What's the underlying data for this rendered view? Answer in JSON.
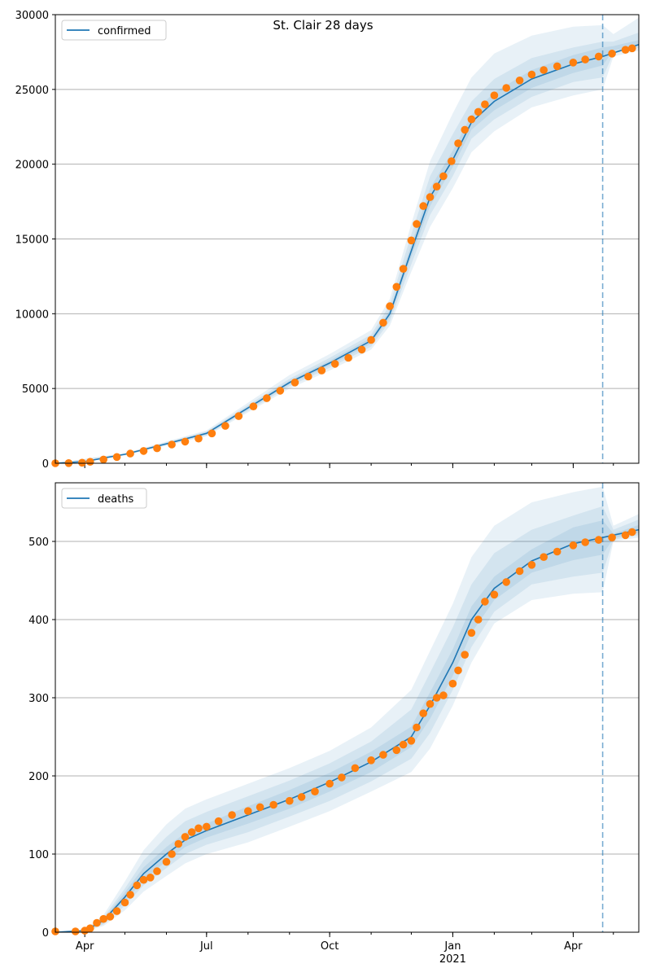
{
  "title": "St. Clair 28 days",
  "colors": {
    "fit_line": "#1f77b4",
    "observed": "#ff7f0e",
    "band": "#1f77b4",
    "grid": "#b0b0b0",
    "forecast_line": "#1f77b4"
  },
  "x_axis": {
    "start": "2020-03-10",
    "end": "2021-05-20",
    "ticks": [
      {
        "date": "2020-04-01",
        "label": "Apr",
        "sublabel": ""
      },
      {
        "date": "2020-07-01",
        "label": "Jul",
        "sublabel": ""
      },
      {
        "date": "2020-10-01",
        "label": "Oct",
        "sublabel": ""
      },
      {
        "date": "2021-01-01",
        "label": "Jan",
        "sublabel": "2021"
      },
      {
        "date": "2021-04-01",
        "label": "Apr",
        "sublabel": ""
      }
    ],
    "forecast_start": "2021-04-23"
  },
  "chart_data": [
    {
      "type": "line",
      "name": "confirmed",
      "legend": "confirmed",
      "legend_position": "upper left",
      "grid": true,
      "ylim": [
        0,
        30000
      ],
      "yticks": [
        0,
        5000,
        10000,
        15000,
        20000,
        25000,
        30000
      ],
      "fit": {
        "x": [
          "2020-03-10",
          "2020-04-01",
          "2020-05-01",
          "2020-06-01",
          "2020-07-01",
          "2020-08-01",
          "2020-09-01",
          "2020-10-01",
          "2020-11-01",
          "2020-11-15",
          "2020-12-01",
          "2020-12-15",
          "2021-01-01",
          "2021-01-15",
          "2021-02-01",
          "2021-03-01",
          "2021-04-01",
          "2021-04-23",
          "2021-05-20"
        ],
        "y": [
          0,
          120,
          600,
          1300,
          2000,
          3700,
          5400,
          6700,
          8200,
          10000,
          14200,
          17800,
          20300,
          22800,
          24200,
          25700,
          26700,
          27200,
          28000
        ]
      },
      "bands": [
        {
          "x": [
            "2020-03-10",
            "2020-05-01",
            "2020-07-01",
            "2020-09-01",
            "2020-10-01",
            "2020-11-01",
            "2020-11-15",
            "2020-12-01",
            "2020-12-15",
            "2021-01-01",
            "2021-01-15",
            "2021-02-01",
            "2021-03-01",
            "2021-04-01",
            "2021-04-23",
            "2021-05-01",
            "2021-05-20"
          ],
          "lower": [
            0,
            520,
            1800,
            5000,
            6200,
            7600,
            9200,
            12800,
            15800,
            18400,
            20800,
            22200,
            23800,
            24600,
            25000,
            27200,
            27600
          ],
          "upper": [
            0,
            680,
            2200,
            5900,
            7300,
            8900,
            11000,
            16000,
            20200,
            23400,
            25800,
            27400,
            28600,
            29200,
            29300,
            28700,
            29800
          ]
        },
        {
          "x": [
            "2020-03-10",
            "2020-05-01",
            "2020-07-01",
            "2020-09-01",
            "2020-10-01",
            "2020-11-01",
            "2020-11-15",
            "2020-12-01",
            "2020-12-15",
            "2021-01-01",
            "2021-01-15",
            "2021-02-01",
            "2021-03-01",
            "2021-04-01",
            "2021-04-23",
            "2021-05-01",
            "2021-05-20"
          ],
          "lower": [
            0,
            550,
            1870,
            5150,
            6380,
            7800,
            9500,
            13300,
            16600,
            19200,
            21700,
            23000,
            24500,
            25500,
            25800,
            27400,
            27800
          ],
          "upper": [
            0,
            650,
            2130,
            5650,
            7050,
            8600,
            10600,
            15300,
            19200,
            22000,
            24200,
            25700,
            27100,
            27800,
            28200,
            28200,
            28800
          ]
        },
        {
          "x": [
            "2020-03-10",
            "2020-05-01",
            "2020-07-01",
            "2020-09-01",
            "2020-10-01",
            "2020-11-01",
            "2020-11-15",
            "2020-12-01",
            "2020-12-15",
            "2021-01-01",
            "2021-01-15",
            "2021-02-01",
            "2021-03-01",
            "2021-04-01",
            "2021-04-23",
            "2021-05-01",
            "2021-05-20"
          ],
          "lower": [
            0,
            575,
            1930,
            5280,
            6540,
            8000,
            9750,
            13800,
            17200,
            19800,
            22300,
            23600,
            25100,
            26100,
            26600,
            27600,
            27950
          ],
          "upper": [
            0,
            625,
            2070,
            5520,
            6860,
            8400,
            10250,
            14600,
            18400,
            20900,
            23300,
            24800,
            26300,
            27300,
            27800,
            27900,
            28300
          ]
        }
      ],
      "observed": {
        "x": [
          "2020-03-10",
          "2020-03-20",
          "2020-03-30",
          "2020-04-05",
          "2020-04-15",
          "2020-04-25",
          "2020-05-05",
          "2020-05-15",
          "2020-05-25",
          "2020-06-05",
          "2020-06-15",
          "2020-06-25",
          "2020-07-05",
          "2020-07-15",
          "2020-07-25",
          "2020-08-05",
          "2020-08-15",
          "2020-08-25",
          "2020-09-05",
          "2020-09-15",
          "2020-09-25",
          "2020-10-05",
          "2020-10-15",
          "2020-10-25",
          "2020-11-01",
          "2020-11-10",
          "2020-11-15",
          "2020-11-20",
          "2020-11-25",
          "2020-12-01",
          "2020-12-05",
          "2020-12-10",
          "2020-12-15",
          "2020-12-20",
          "2020-12-25",
          "2020-12-31",
          "2021-01-05",
          "2021-01-10",
          "2021-01-15",
          "2021-01-20",
          "2021-01-25",
          "2021-02-01",
          "2021-02-10",
          "2021-02-20",
          "2021-03-01",
          "2021-03-10",
          "2021-03-20",
          "2021-04-01",
          "2021-04-10",
          "2021-04-20",
          "2021-04-30",
          "2021-05-10",
          "2021-05-15"
        ],
        "y": [
          0,
          10,
          40,
          100,
          250,
          420,
          650,
          820,
          1000,
          1250,
          1450,
          1650,
          2000,
          2500,
          3150,
          3800,
          4350,
          4850,
          5400,
          5800,
          6200,
          6650,
          7050,
          7600,
          8250,
          9400,
          10500,
          11800,
          13000,
          14900,
          16000,
          17200,
          17800,
          18500,
          19200,
          20200,
          21400,
          22300,
          23000,
          23500,
          24000,
          24600,
          25100,
          25600,
          26000,
          26300,
          26550,
          26800,
          27000,
          27200,
          27400,
          27650,
          27750
        ]
      }
    },
    {
      "type": "line",
      "name": "deaths",
      "legend": "deaths",
      "legend_position": "upper left",
      "grid": true,
      "ylim": [
        0,
        575
      ],
      "yticks": [
        0,
        100,
        200,
        300,
        400,
        500
      ],
      "fit": {
        "x": [
          "2020-03-10",
          "2020-04-01",
          "2020-04-15",
          "2020-05-01",
          "2020-05-15",
          "2020-06-01",
          "2020-06-15",
          "2020-07-01",
          "2020-08-01",
          "2020-09-01",
          "2020-10-01",
          "2020-11-01",
          "2020-12-01",
          "2020-12-15",
          "2021-01-01",
          "2021-01-15",
          "2021-02-01",
          "2021-03-01",
          "2021-04-01",
          "2021-04-23",
          "2021-05-20"
        ],
        "y": [
          0,
          2,
          15,
          45,
          75,
          100,
          118,
          130,
          150,
          170,
          192,
          218,
          250,
          290,
          345,
          400,
          440,
          475,
          497,
          505,
          515
        ]
      },
      "bands": [
        {
          "x": [
            "2020-03-10",
            "2020-04-01",
            "2020-04-15",
            "2020-05-01",
            "2020-05-15",
            "2020-06-01",
            "2020-06-15",
            "2020-07-01",
            "2020-08-01",
            "2020-09-01",
            "2020-10-01",
            "2020-11-01",
            "2020-12-01",
            "2020-12-15",
            "2021-01-01",
            "2021-01-15",
            "2021-02-01",
            "2021-03-01",
            "2021-04-01",
            "2021-04-23",
            "2021-05-01",
            "2021-05-20"
          ],
          "lower": [
            0,
            1,
            8,
            28,
            52,
            72,
            88,
            100,
            115,
            135,
            155,
            180,
            205,
            235,
            290,
            345,
            395,
            425,
            433,
            435,
            500,
            505
          ],
          "upper": [
            0,
            3,
            22,
            65,
            105,
            138,
            158,
            170,
            190,
            210,
            232,
            262,
            310,
            360,
            420,
            480,
            520,
            550,
            563,
            570,
            520,
            535
          ]
        },
        {
          "x": [
            "2020-03-10",
            "2020-04-01",
            "2020-04-15",
            "2020-05-01",
            "2020-05-15",
            "2020-06-01",
            "2020-06-15",
            "2020-07-01",
            "2020-08-01",
            "2020-09-01",
            "2020-10-01",
            "2020-11-01",
            "2020-12-01",
            "2020-12-15",
            "2021-01-01",
            "2021-01-15",
            "2021-02-01",
            "2021-03-01",
            "2021-04-01",
            "2021-04-23",
            "2021-05-01",
            "2021-05-20"
          ],
          "lower": [
            0,
            1,
            10,
            34,
            60,
            82,
            100,
            112,
            128,
            148,
            168,
            193,
            222,
            255,
            310,
            365,
            410,
            445,
            455,
            460,
            502,
            508
          ],
          "upper": [
            0,
            3,
            19,
            56,
            92,
            122,
            142,
            154,
            174,
            194,
            216,
            244,
            285,
            332,
            390,
            445,
            485,
            515,
            533,
            545,
            515,
            528
          ]
        },
        {
          "x": [
            "2020-03-10",
            "2020-04-01",
            "2020-04-15",
            "2020-05-01",
            "2020-05-15",
            "2020-06-01",
            "2020-06-15",
            "2020-07-01",
            "2020-08-01",
            "2020-09-01",
            "2020-10-01",
            "2020-11-01",
            "2020-12-01",
            "2020-12-15",
            "2021-01-01",
            "2021-01-15",
            "2021-02-01",
            "2021-03-01",
            "2021-04-01",
            "2021-04-23",
            "2021-05-01",
            "2021-05-20"
          ],
          "lower": [
            0,
            1.5,
            12,
            39,
            67,
            91,
            109,
            121,
            139,
            158,
            180,
            205,
            237,
            273,
            328,
            383,
            425,
            460,
            476,
            483,
            504,
            511
          ],
          "upper": [
            0,
            2.5,
            17,
            51,
            83,
            109,
            127,
            139,
            161,
            182,
            204,
            231,
            263,
            307,
            362,
            417,
            455,
            490,
            518,
            527,
            510,
            521
          ]
        }
      ],
      "observed": {
        "x": [
          "2020-03-10",
          "2020-03-25",
          "2020-04-01",
          "2020-04-05",
          "2020-04-10",
          "2020-04-15",
          "2020-04-20",
          "2020-04-25",
          "2020-05-01",
          "2020-05-05",
          "2020-05-10",
          "2020-05-15",
          "2020-05-20",
          "2020-05-25",
          "2020-06-01",
          "2020-06-05",
          "2020-06-10",
          "2020-06-15",
          "2020-06-20",
          "2020-06-25",
          "2020-07-01",
          "2020-07-10",
          "2020-07-20",
          "2020-08-01",
          "2020-08-10",
          "2020-08-20",
          "2020-09-01",
          "2020-09-10",
          "2020-09-20",
          "2020-10-01",
          "2020-10-10",
          "2020-10-20",
          "2020-11-01",
          "2020-11-10",
          "2020-11-20",
          "2020-11-25",
          "2020-12-01",
          "2020-12-05",
          "2020-12-10",
          "2020-12-15",
          "2020-12-20",
          "2020-12-25",
          "2021-01-01",
          "2021-01-05",
          "2021-01-10",
          "2021-01-15",
          "2021-01-20",
          "2021-01-25",
          "2021-02-01",
          "2021-02-10",
          "2021-02-20",
          "2021-03-01",
          "2021-03-10",
          "2021-03-20",
          "2021-04-01",
          "2021-04-10",
          "2021-04-20",
          "2021-04-30",
          "2021-05-10",
          "2021-05-15"
        ],
        "y": [
          1,
          1,
          2,
          5,
          12,
          17,
          20,
          27,
          38,
          48,
          60,
          67,
          70,
          78,
          90,
          100,
          113,
          122,
          128,
          133,
          135,
          142,
          150,
          155,
          160,
          163,
          168,
          173,
          180,
          190,
          198,
          210,
          220,
          227,
          233,
          240,
          245,
          262,
          280,
          292,
          300,
          303,
          318,
          335,
          355,
          383,
          400,
          423,
          432,
          448,
          462,
          470,
          480,
          487,
          495,
          499,
          502,
          505,
          508,
          512
        ]
      }
    }
  ]
}
